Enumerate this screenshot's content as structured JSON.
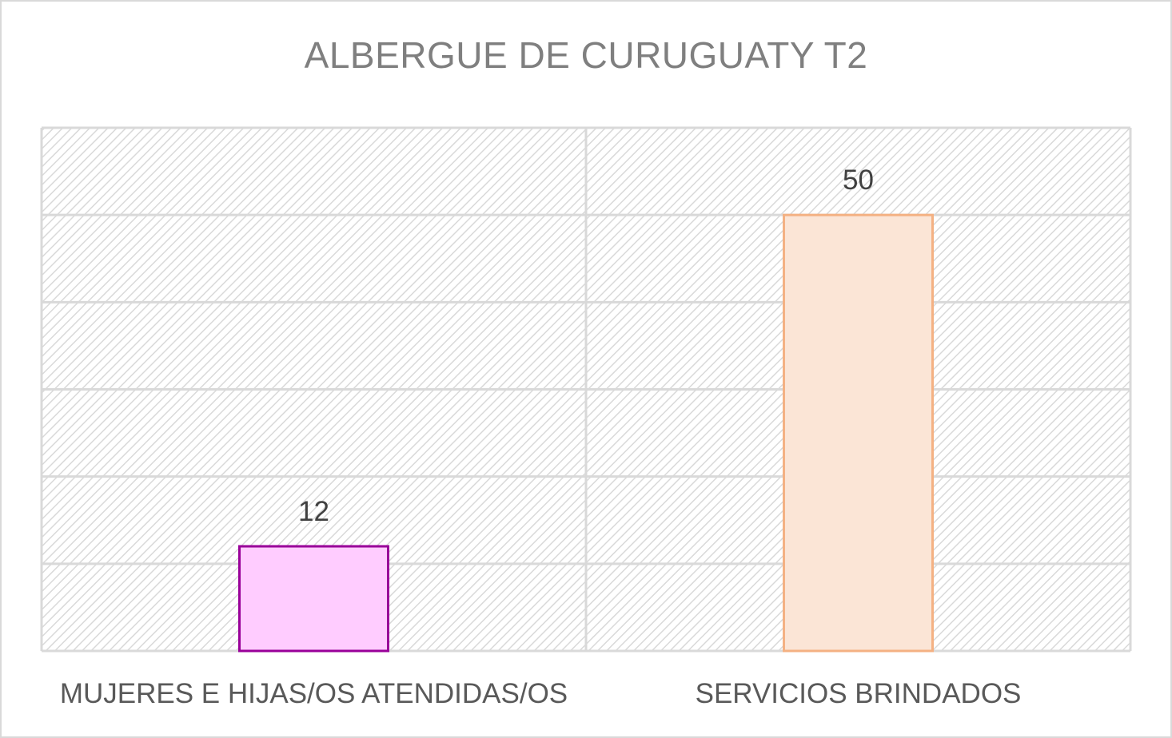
{
  "chart_data": {
    "type": "bar",
    "title": "ALBERGUE DE CURUGUATY T2",
    "categories": [
      "MUJERES E HIJAS/OS ATENDIDAS/OS",
      "SERVICIOS BRINDADOS"
    ],
    "values": [
      12,
      50
    ],
    "ylim": [
      0,
      60
    ],
    "y_gridline_step": 10,
    "show_y_axis_labels": false,
    "grid": true,
    "plot_background": "hatched-gray",
    "legend": "none",
    "bar_colors": [
      {
        "fill": "#ffccff",
        "stroke": "#990099"
      },
      {
        "fill": "#fbe5d6",
        "stroke": "#f4b183"
      }
    ]
  }
}
